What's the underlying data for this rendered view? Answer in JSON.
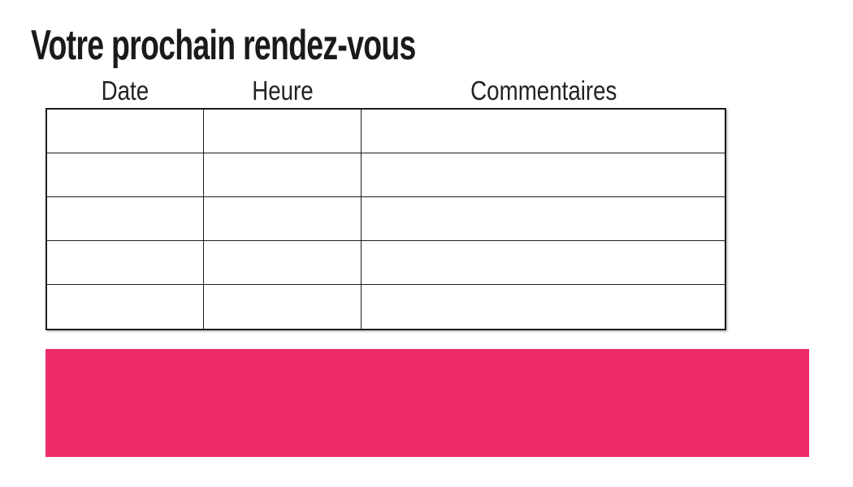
{
  "page": {
    "title": "Votre prochain rendez-vous"
  },
  "appointments_table": {
    "headers": [
      "Date",
      "Heure",
      "Commentaires"
    ],
    "rows": [
      [
        "",
        "",
        ""
      ],
      [
        "",
        "",
        ""
      ],
      [
        "",
        "",
        ""
      ],
      [
        "",
        "",
        ""
      ],
      [
        "",
        "",
        ""
      ]
    ]
  },
  "banner": {
    "text": "",
    "color": "#ED2B67"
  },
  "colors": {
    "accent_pink": "#ED2B67",
    "title_text": "#1A1A1A",
    "header_text": "#222222",
    "table_border": "#1C1C1C",
    "page_background": "#FFFFFF"
  }
}
